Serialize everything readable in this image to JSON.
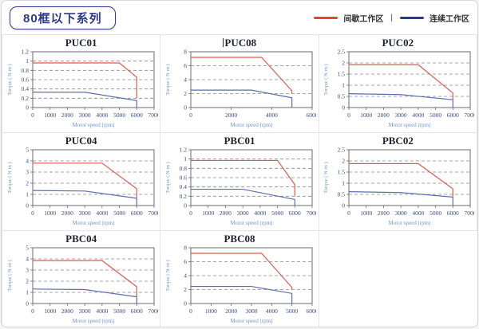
{
  "header": {
    "title": "80框以下系列"
  },
  "legend": {
    "separator": "|",
    "items": [
      {
        "name": "intermittent-zone",
        "label": "间歇工作区",
        "color": "#e8432d"
      },
      {
        "name": "continuous-zone",
        "label": "连续工作区",
        "color": "#223f8f"
      }
    ]
  },
  "axis": {
    "xlabel": "Motor speed (rpm)",
    "ylabel": "Torque ( N·m )"
  },
  "colors": {
    "curve_red": "#e0594e",
    "curve_blue": "#5d6eae",
    "plot_border": "#6b6b6b",
    "grid_line": "#8a8a8a",
    "tick_label": "#39487e",
    "axis_label": "#6f97cf",
    "chart_title": "#1f2430",
    "cell_border": "#e4e4e4",
    "header_accent": "#2d3a8c"
  },
  "chart_data": [
    {
      "type": "line",
      "title": "PUC01",
      "title_caret": false,
      "xlabel": "Motor speed (rpm)",
      "ylabel": "Torque ( N·m )",
      "xlim": [
        0,
        7000
      ],
      "ylim": [
        0,
        1.2
      ],
      "xticks": [
        0,
        1000,
        2000,
        3000,
        4000,
        5000,
        6000,
        7000
      ],
      "yticks": [
        0,
        0.2,
        0.4,
        0.6,
        0.8,
        1,
        1.2
      ],
      "grid": "dashed-horizontal",
      "legend_position": "none",
      "series": [
        {
          "name": "间歇工作区",
          "color": "#e0594e",
          "points": [
            [
              0,
              0.96
            ],
            [
              5000,
              0.96
            ],
            [
              6000,
              0.65
            ],
            [
              6000,
              0.2
            ]
          ]
        },
        {
          "name": "连续工作区",
          "color": "#5d6eae",
          "points": [
            [
              0,
              0.33
            ],
            [
              3000,
              0.33
            ],
            [
              6000,
              0.15
            ],
            [
              6000,
              0
            ]
          ]
        }
      ]
    },
    {
      "type": "line",
      "title": "PUC08",
      "title_caret": true,
      "xlabel": "Motor speed (rpm)",
      "ylabel": "Torque ( N·m )",
      "xlim": [
        0,
        6000
      ],
      "ylim": [
        0,
        8
      ],
      "xticks": [
        0,
        2000,
        4000,
        6000
      ],
      "yticks": [
        0,
        2,
        4,
        6,
        8
      ],
      "grid": "dashed-horizontal",
      "legend_position": "none",
      "series": [
        {
          "name": "间歇工作区",
          "color": "#e0594e",
          "points": [
            [
              0,
              7.2
            ],
            [
              3500,
              7.2
            ],
            [
              5000,
              2.4
            ],
            [
              5000,
              2.0
            ]
          ]
        },
        {
          "name": "连续工作区",
          "color": "#5d6eae",
          "points": [
            [
              0,
              2.5
            ],
            [
              3000,
              2.5
            ],
            [
              5000,
              1.4
            ],
            [
              5000,
              0
            ]
          ]
        }
      ]
    },
    {
      "type": "line",
      "title": "PUC02",
      "title_caret": false,
      "xlabel": "Motor speed (rpm)",
      "ylabel": "Torque ( N·m )",
      "xlim": [
        0,
        7000
      ],
      "ylim": [
        0,
        2.5
      ],
      "xticks": [
        0,
        1000,
        2000,
        3000,
        4000,
        5000,
        6000,
        7000
      ],
      "yticks": [
        0,
        0.5,
        1,
        1.5,
        2,
        2.5
      ],
      "grid": "dashed-horizontal",
      "legend_position": "none",
      "series": [
        {
          "name": "间歇工作区",
          "color": "#e0594e",
          "points": [
            [
              0,
              1.92
            ],
            [
              4000,
              1.92
            ],
            [
              6000,
              0.65
            ],
            [
              6000,
              0.35
            ]
          ]
        },
        {
          "name": "连续工作区",
          "color": "#5d6eae",
          "points": [
            [
              0,
              0.62
            ],
            [
              3000,
              0.58
            ],
            [
              6000,
              0.35
            ],
            [
              6000,
              0
            ]
          ]
        }
      ]
    },
    {
      "type": "line",
      "title": "PUC04",
      "title_caret": false,
      "xlabel": "Motor speed (rpm)",
      "ylabel": "Torque ( N·m )",
      "xlim": [
        0,
        7000
      ],
      "ylim": [
        0,
        5
      ],
      "xticks": [
        0,
        1000,
        2000,
        3000,
        4000,
        5000,
        6000,
        7000
      ],
      "yticks": [
        0,
        1,
        2,
        3,
        4,
        5
      ],
      "grid": "dashed-horizontal",
      "legend_position": "none",
      "series": [
        {
          "name": "间歇工作区",
          "color": "#e0594e",
          "points": [
            [
              0,
              3.8
            ],
            [
              4000,
              3.8
            ],
            [
              6000,
              1.5
            ],
            [
              6000,
              0.7
            ]
          ]
        },
        {
          "name": "连续工作区",
          "color": "#5d6eae",
          "points": [
            [
              0,
              1.35
            ],
            [
              3000,
              1.3
            ],
            [
              6000,
              0.65
            ],
            [
              6000,
              0
            ]
          ]
        }
      ]
    },
    {
      "type": "line",
      "title": "PBC01",
      "title_caret": false,
      "xlabel": "Motor speed (rpm)",
      "ylabel": "Torque ( N·m )",
      "xlim": [
        0,
        7000
      ],
      "ylim": [
        0,
        1.2
      ],
      "xticks": [
        0,
        1000,
        2000,
        3000,
        4000,
        5000,
        6000,
        7000
      ],
      "yticks": [
        0,
        0.2,
        0.4,
        0.6,
        0.8,
        1,
        1.2
      ],
      "grid": "dashed-horizontal",
      "legend_position": "none",
      "series": [
        {
          "name": "间歇工作区",
          "color": "#e0594e",
          "points": [
            [
              0,
              0.97
            ],
            [
              5000,
              0.97
            ],
            [
              6000,
              0.45
            ],
            [
              6000,
              0.2
            ]
          ]
        },
        {
          "name": "连续工作区",
          "color": "#5d6eae",
          "points": [
            [
              0,
              0.35
            ],
            [
              3000,
              0.35
            ],
            [
              6000,
              0.13
            ],
            [
              6000,
              0
            ]
          ]
        }
      ]
    },
    {
      "type": "line",
      "title": "PBC02",
      "title_caret": false,
      "xlabel": "Motor speed (rpm)",
      "ylabel": "Torque ( N·m )",
      "xlim": [
        0,
        7000
      ],
      "ylim": [
        0,
        2.5
      ],
      "xticks": [
        0,
        1000,
        2000,
        3000,
        4000,
        5000,
        6000,
        7000
      ],
      "yticks": [
        0,
        0.5,
        1,
        1.5,
        2,
        2.5
      ],
      "grid": "dashed-horizontal",
      "legend_position": "none",
      "series": [
        {
          "name": "间歇工作区",
          "color": "#e0594e",
          "points": [
            [
              0,
              1.88
            ],
            [
              4000,
              1.88
            ],
            [
              6000,
              0.75
            ],
            [
              6000,
              0.4
            ]
          ]
        },
        {
          "name": "连续工作区",
          "color": "#5d6eae",
          "points": [
            [
              0,
              0.62
            ],
            [
              3000,
              0.58
            ],
            [
              6000,
              0.38
            ],
            [
              6000,
              0
            ]
          ]
        }
      ]
    },
    {
      "type": "line",
      "title": "PBC04",
      "title_caret": false,
      "xlabel": "Motor speed (rpm)",
      "ylabel": "Torque ( N·m )",
      "xlim": [
        0,
        7000
      ],
      "ylim": [
        0,
        5
      ],
      "xticks": [
        0,
        1000,
        2000,
        3000,
        4000,
        5000,
        6000,
        7000
      ],
      "yticks": [
        0,
        1,
        2,
        3,
        4,
        5
      ],
      "grid": "dashed-horizontal",
      "legend_position": "none",
      "series": [
        {
          "name": "间歇工作区",
          "color": "#e0594e",
          "points": [
            [
              0,
              3.85
            ],
            [
              4000,
              3.85
            ],
            [
              6000,
              1.5
            ],
            [
              6000,
              0.65
            ]
          ]
        },
        {
          "name": "连续工作区",
          "color": "#5d6eae",
          "points": [
            [
              0,
              1.3
            ],
            [
              3000,
              1.25
            ],
            [
              6000,
              0.6
            ],
            [
              6000,
              0
            ]
          ]
        }
      ]
    },
    {
      "type": "line",
      "title": "PBC08",
      "title_caret": false,
      "xlabel": "Motor speed (rpm)",
      "ylabel": "Torque ( N·m )",
      "xlim": [
        0,
        6000
      ],
      "ylim": [
        0,
        8
      ],
      "xticks": [
        0,
        1000,
        2000,
        3000,
        4000,
        5000,
        6000
      ],
      "yticks": [
        0,
        2,
        4,
        6,
        8
      ],
      "grid": "dashed-horizontal",
      "legend_position": "none",
      "series": [
        {
          "name": "间歇工作区",
          "color": "#e0594e",
          "points": [
            [
              0,
              7.2
            ],
            [
              3500,
              7.2
            ],
            [
              5000,
              2.3
            ],
            [
              5000,
              2.0
            ]
          ]
        },
        {
          "name": "连续工作区",
          "color": "#5d6eae",
          "points": [
            [
              0,
              2.45
            ],
            [
              3000,
              2.45
            ],
            [
              5000,
              1.45
            ],
            [
              5000,
              0
            ]
          ]
        }
      ]
    }
  ]
}
